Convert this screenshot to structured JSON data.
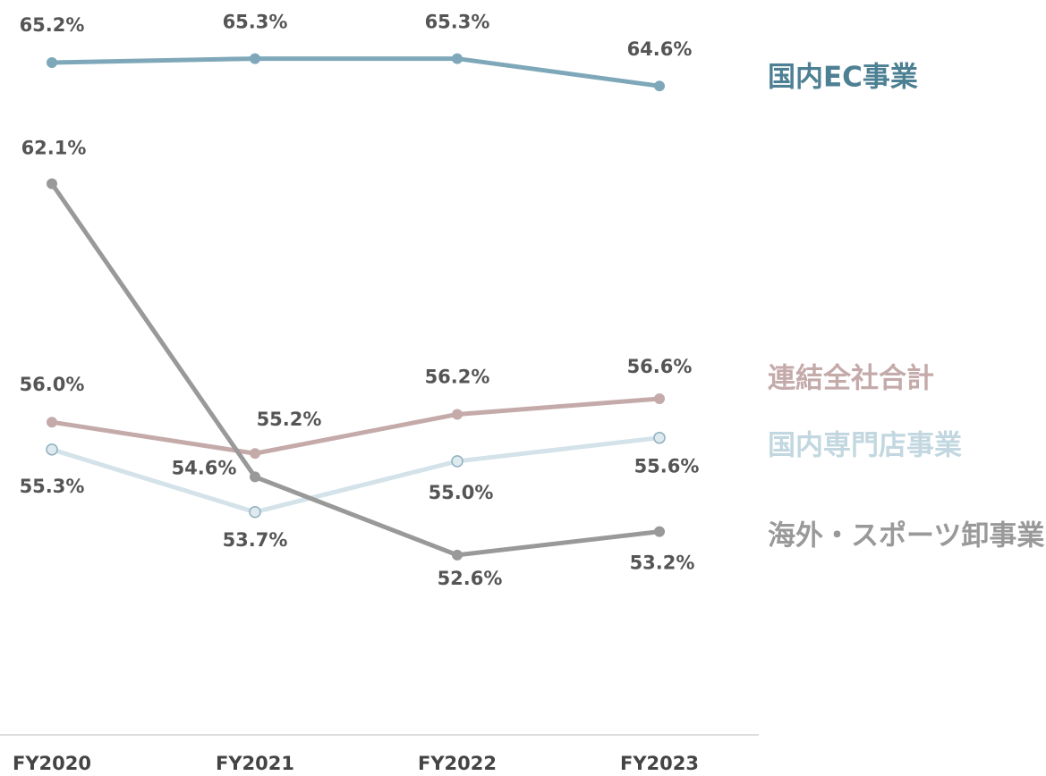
{
  "chart_data": {
    "type": "line",
    "categories": [
      "FY2020",
      "FY2021",
      "FY2022",
      "FY2023"
    ],
    "ylim": [
      48,
      66.8
    ],
    "series": [
      {
        "name": "国内EC事業",
        "color": "#7ea8b9",
        "label_color": "#4d8093",
        "values": [
          65.2,
          65.3,
          65.3,
          64.6
        ],
        "value_labels": [
          "65.2%",
          "65.3%",
          "65.3%",
          "64.6%"
        ]
      },
      {
        "name": "連結全社合計",
        "color": "#c5aaaa",
        "label_color": "#c5aaaa",
        "values": [
          56.0,
          55.2,
          56.2,
          56.6
        ],
        "value_labels": [
          "56.0%",
          "55.2%",
          "56.2%",
          "56.6%"
        ]
      },
      {
        "name": "国内専門店事業",
        "color": "#d4e2e9",
        "label_color": "#c2d7e0",
        "values": [
          55.3,
          53.7,
          55.0,
          55.6
        ],
        "value_labels": [
          "55.3%",
          "53.7%",
          "55.0%",
          "55.6%"
        ]
      },
      {
        "name": "海外・スポーツ卸事業",
        "color": "#999999",
        "label_color": "#999999",
        "values": [
          62.1,
          54.6,
          52.6,
          53.2
        ],
        "value_labels": [
          "62.1%",
          "54.6%",
          "52.6%",
          "53.2%"
        ]
      }
    ]
  }
}
